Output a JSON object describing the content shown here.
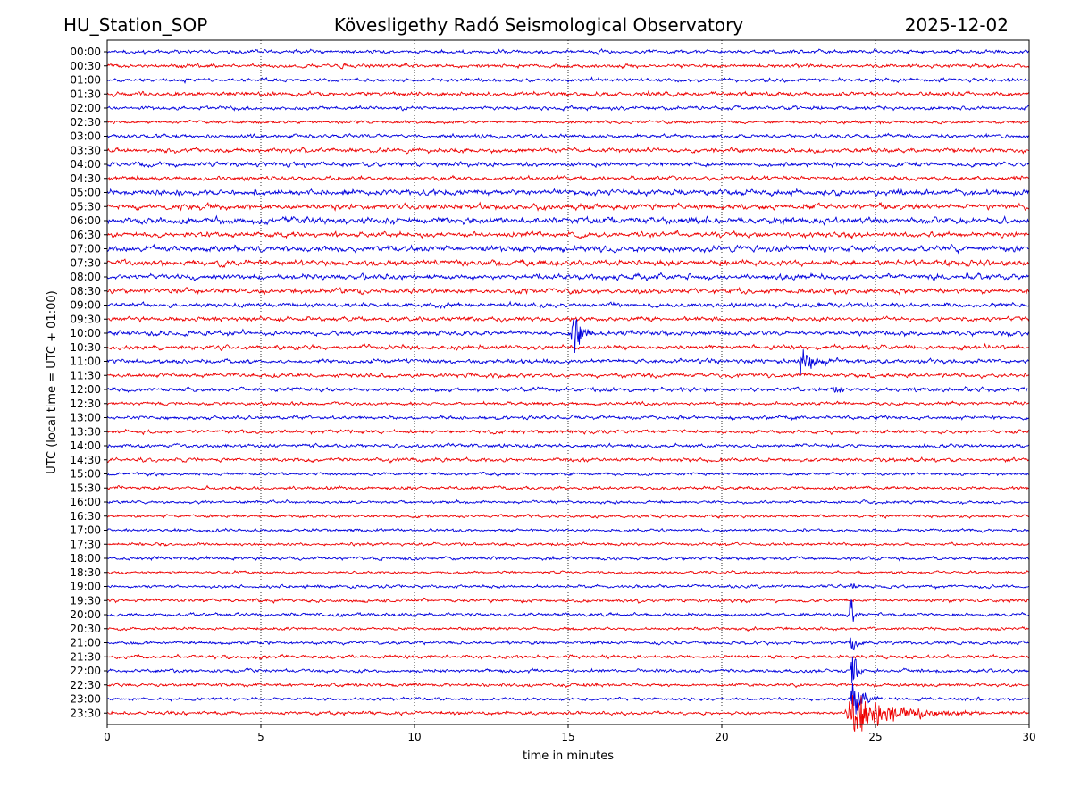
{
  "header": {
    "station": "HU_Station_SOP",
    "title": "Kövesligethy Radó Seismological Observatory",
    "date": "2025-12-02"
  },
  "colors": {
    "trace_a": "#0000dd",
    "trace_b": "#ee0000",
    "axes": "#000000",
    "grid": "#000000"
  },
  "chart_data": {
    "type": "line",
    "title": "Kövesligethy Radó Seismological Observatory",
    "xlabel": "time in minutes",
    "ylabel": "UTC (local time = UTC + 01:00)",
    "xlim": [
      0,
      30
    ],
    "x_ticks": [
      "0",
      "5",
      "10",
      "15",
      "20",
      "25",
      "30"
    ],
    "x_tick_values": [
      0,
      5,
      10,
      15,
      20,
      25,
      30
    ],
    "grid": "vertical dotted at x ticks",
    "rows": [
      "00:00",
      "00:30",
      "01:00",
      "01:30",
      "02:00",
      "02:30",
      "03:00",
      "03:30",
      "04:00",
      "04:30",
      "05:00",
      "05:30",
      "06:00",
      "06:30",
      "07:00",
      "07:30",
      "08:00",
      "08:30",
      "09:00",
      "09:30",
      "10:00",
      "10:30",
      "11:00",
      "11:30",
      "12:00",
      "12:30",
      "13:00",
      "13:30",
      "14:00",
      "14:30",
      "15:00",
      "15:30",
      "16:00",
      "16:30",
      "17:00",
      "17:30",
      "18:00",
      "18:30",
      "19:00",
      "19:30",
      "20:00",
      "20:30",
      "21:00",
      "21:30",
      "22:00",
      "22:30",
      "23:00",
      "23:30"
    ],
    "series_color_pattern": [
      "blue",
      "red"
    ],
    "noise_amplitude_by_row": [
      0.1,
      0.1,
      0.1,
      0.12,
      0.1,
      0.08,
      0.1,
      0.12,
      0.12,
      0.11,
      0.15,
      0.15,
      0.17,
      0.14,
      0.16,
      0.15,
      0.14,
      0.13,
      0.12,
      0.12,
      0.13,
      0.12,
      0.12,
      0.11,
      0.11,
      0.09,
      0.1,
      0.1,
      0.1,
      0.1,
      0.08,
      0.09,
      0.08,
      0.08,
      0.08,
      0.08,
      0.09,
      0.07,
      0.08,
      0.09,
      0.09,
      0.08,
      0.09,
      0.1,
      0.09,
      0.09,
      0.08,
      0.09
    ],
    "events": [
      {
        "row": "10:00",
        "start_min": 15.1,
        "duration_min": 0.8,
        "amplitude": 1.9
      },
      {
        "row": "11:00",
        "start_min": 22.5,
        "duration_min": 1.6,
        "amplitude": 0.75
      },
      {
        "row": "12:00",
        "start_min": 23.6,
        "duration_min": 0.8,
        "amplitude": 0.35
      },
      {
        "row": "19:00",
        "start_min": 24.2,
        "duration_min": 0.3,
        "amplitude": 0.4
      },
      {
        "row": "20:00",
        "start_min": 24.15,
        "duration_min": 0.3,
        "amplitude": 1.6
      },
      {
        "row": "21:00",
        "start_min": 24.15,
        "duration_min": 0.5,
        "amplitude": 1.2
      },
      {
        "row": "22:00",
        "start_min": 24.2,
        "duration_min": 0.6,
        "amplitude": 1.6
      },
      {
        "row": "23:00",
        "start_min": 24.2,
        "duration_min": 1.0,
        "amplitude": 1.6
      },
      {
        "row": "23:30",
        "start_min": 24.0,
        "duration_min": 4.5,
        "amplitude": 1.3
      }
    ]
  }
}
